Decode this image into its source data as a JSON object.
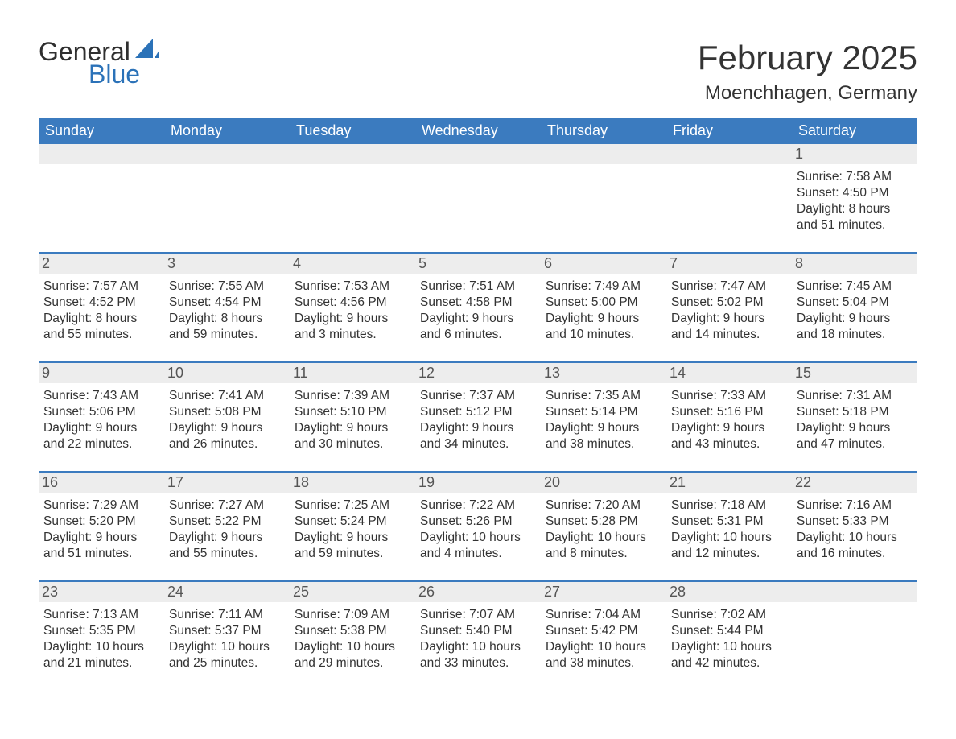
{
  "logo": {
    "general": "General",
    "blue": "Blue"
  },
  "title": "February 2025",
  "location": "Moenchhagen, Germany",
  "day_headers": [
    "Sunday",
    "Monday",
    "Tuesday",
    "Wednesday",
    "Thursday",
    "Friday",
    "Saturday"
  ],
  "colors": {
    "header_bg": "#3b7bbf",
    "header_text": "#ffffff",
    "band_bg": "#ededed",
    "rule": "#3b7bbf",
    "body_text": "#333333",
    "logo_blue": "#2b72b8",
    "logo_dark": "#2f2f2f",
    "page_bg": "#ffffff"
  },
  "layout": {
    "columns": 7,
    "rows": 5,
    "month_title_fontsize": 42,
    "location_fontsize": 24,
    "dayhead_fontsize": 18,
    "daynum_fontsize": 18,
    "info_fontsize": 15.5
  },
  "weeks": [
    [
      {
        "day": null
      },
      {
        "day": null
      },
      {
        "day": null
      },
      {
        "day": null
      },
      {
        "day": null
      },
      {
        "day": null
      },
      {
        "day": "1",
        "sunrise": "Sunrise: 7:58 AM",
        "sunset": "Sunset: 4:50 PM",
        "daylight1": "Daylight: 8 hours",
        "daylight2": "and 51 minutes."
      }
    ],
    [
      {
        "day": "2",
        "sunrise": "Sunrise: 7:57 AM",
        "sunset": "Sunset: 4:52 PM",
        "daylight1": "Daylight: 8 hours",
        "daylight2": "and 55 minutes."
      },
      {
        "day": "3",
        "sunrise": "Sunrise: 7:55 AM",
        "sunset": "Sunset: 4:54 PM",
        "daylight1": "Daylight: 8 hours",
        "daylight2": "and 59 minutes."
      },
      {
        "day": "4",
        "sunrise": "Sunrise: 7:53 AM",
        "sunset": "Sunset: 4:56 PM",
        "daylight1": "Daylight: 9 hours",
        "daylight2": "and 3 minutes."
      },
      {
        "day": "5",
        "sunrise": "Sunrise: 7:51 AM",
        "sunset": "Sunset: 4:58 PM",
        "daylight1": "Daylight: 9 hours",
        "daylight2": "and 6 minutes."
      },
      {
        "day": "6",
        "sunrise": "Sunrise: 7:49 AM",
        "sunset": "Sunset: 5:00 PM",
        "daylight1": "Daylight: 9 hours",
        "daylight2": "and 10 minutes."
      },
      {
        "day": "7",
        "sunrise": "Sunrise: 7:47 AM",
        "sunset": "Sunset: 5:02 PM",
        "daylight1": "Daylight: 9 hours",
        "daylight2": "and 14 minutes."
      },
      {
        "day": "8",
        "sunrise": "Sunrise: 7:45 AM",
        "sunset": "Sunset: 5:04 PM",
        "daylight1": "Daylight: 9 hours",
        "daylight2": "and 18 minutes."
      }
    ],
    [
      {
        "day": "9",
        "sunrise": "Sunrise: 7:43 AM",
        "sunset": "Sunset: 5:06 PM",
        "daylight1": "Daylight: 9 hours",
        "daylight2": "and 22 minutes."
      },
      {
        "day": "10",
        "sunrise": "Sunrise: 7:41 AM",
        "sunset": "Sunset: 5:08 PM",
        "daylight1": "Daylight: 9 hours",
        "daylight2": "and 26 minutes."
      },
      {
        "day": "11",
        "sunrise": "Sunrise: 7:39 AM",
        "sunset": "Sunset: 5:10 PM",
        "daylight1": "Daylight: 9 hours",
        "daylight2": "and 30 minutes."
      },
      {
        "day": "12",
        "sunrise": "Sunrise: 7:37 AM",
        "sunset": "Sunset: 5:12 PM",
        "daylight1": "Daylight: 9 hours",
        "daylight2": "and 34 minutes."
      },
      {
        "day": "13",
        "sunrise": "Sunrise: 7:35 AM",
        "sunset": "Sunset: 5:14 PM",
        "daylight1": "Daylight: 9 hours",
        "daylight2": "and 38 minutes."
      },
      {
        "day": "14",
        "sunrise": "Sunrise: 7:33 AM",
        "sunset": "Sunset: 5:16 PM",
        "daylight1": "Daylight: 9 hours",
        "daylight2": "and 43 minutes."
      },
      {
        "day": "15",
        "sunrise": "Sunrise: 7:31 AM",
        "sunset": "Sunset: 5:18 PM",
        "daylight1": "Daylight: 9 hours",
        "daylight2": "and 47 minutes."
      }
    ],
    [
      {
        "day": "16",
        "sunrise": "Sunrise: 7:29 AM",
        "sunset": "Sunset: 5:20 PM",
        "daylight1": "Daylight: 9 hours",
        "daylight2": "and 51 minutes."
      },
      {
        "day": "17",
        "sunrise": "Sunrise: 7:27 AM",
        "sunset": "Sunset: 5:22 PM",
        "daylight1": "Daylight: 9 hours",
        "daylight2": "and 55 minutes."
      },
      {
        "day": "18",
        "sunrise": "Sunrise: 7:25 AM",
        "sunset": "Sunset: 5:24 PM",
        "daylight1": "Daylight: 9 hours",
        "daylight2": "and 59 minutes."
      },
      {
        "day": "19",
        "sunrise": "Sunrise: 7:22 AM",
        "sunset": "Sunset: 5:26 PM",
        "daylight1": "Daylight: 10 hours",
        "daylight2": "and 4 minutes."
      },
      {
        "day": "20",
        "sunrise": "Sunrise: 7:20 AM",
        "sunset": "Sunset: 5:28 PM",
        "daylight1": "Daylight: 10 hours",
        "daylight2": "and 8 minutes."
      },
      {
        "day": "21",
        "sunrise": "Sunrise: 7:18 AM",
        "sunset": "Sunset: 5:31 PM",
        "daylight1": "Daylight: 10 hours",
        "daylight2": "and 12 minutes."
      },
      {
        "day": "22",
        "sunrise": "Sunrise: 7:16 AM",
        "sunset": "Sunset: 5:33 PM",
        "daylight1": "Daylight: 10 hours",
        "daylight2": "and 16 minutes."
      }
    ],
    [
      {
        "day": "23",
        "sunrise": "Sunrise: 7:13 AM",
        "sunset": "Sunset: 5:35 PM",
        "daylight1": "Daylight: 10 hours",
        "daylight2": "and 21 minutes."
      },
      {
        "day": "24",
        "sunrise": "Sunrise: 7:11 AM",
        "sunset": "Sunset: 5:37 PM",
        "daylight1": "Daylight: 10 hours",
        "daylight2": "and 25 minutes."
      },
      {
        "day": "25",
        "sunrise": "Sunrise: 7:09 AM",
        "sunset": "Sunset: 5:38 PM",
        "daylight1": "Daylight: 10 hours",
        "daylight2": "and 29 minutes."
      },
      {
        "day": "26",
        "sunrise": "Sunrise: 7:07 AM",
        "sunset": "Sunset: 5:40 PM",
        "daylight1": "Daylight: 10 hours",
        "daylight2": "and 33 minutes."
      },
      {
        "day": "27",
        "sunrise": "Sunrise: 7:04 AM",
        "sunset": "Sunset: 5:42 PM",
        "daylight1": "Daylight: 10 hours",
        "daylight2": "and 38 minutes."
      },
      {
        "day": "28",
        "sunrise": "Sunrise: 7:02 AM",
        "sunset": "Sunset: 5:44 PM",
        "daylight1": "Daylight: 10 hours",
        "daylight2": "and 42 minutes."
      },
      {
        "day": null
      }
    ]
  ]
}
